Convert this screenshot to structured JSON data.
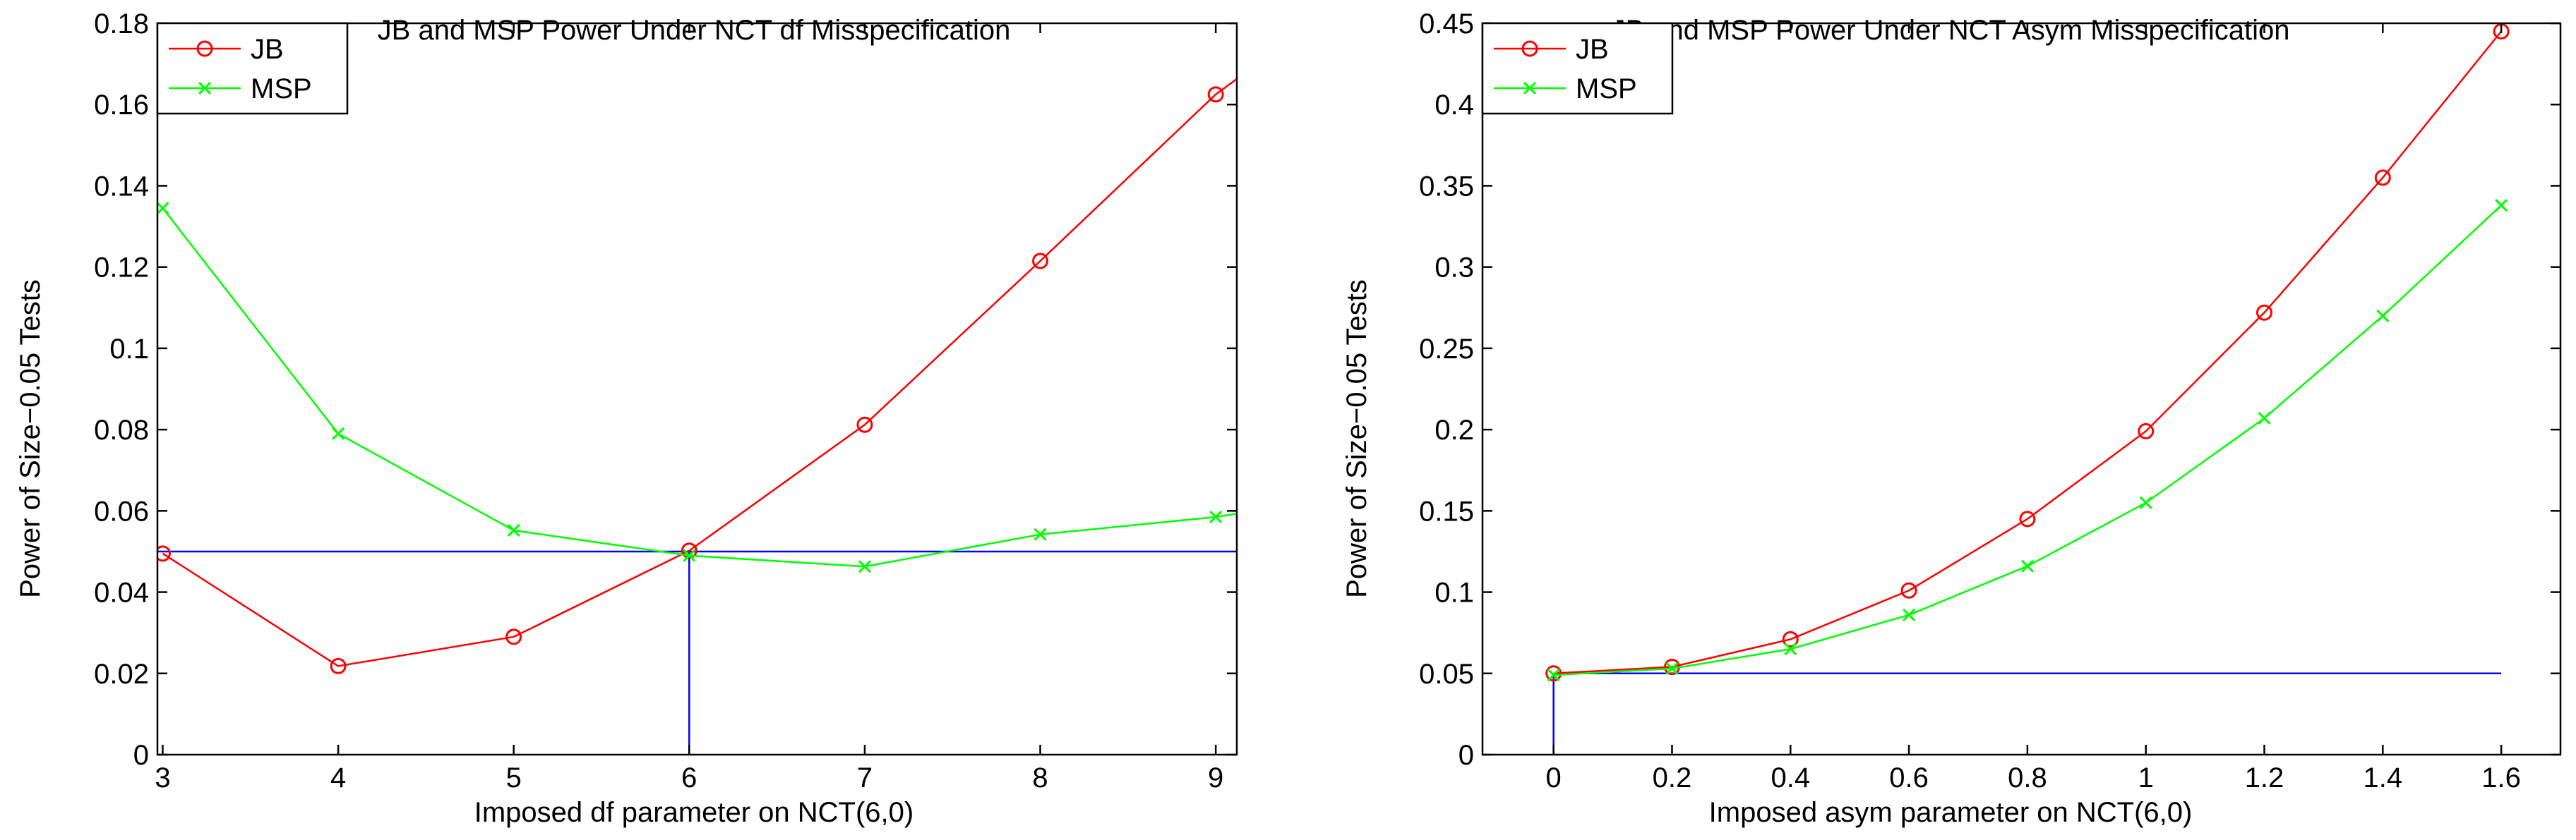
{
  "chart_data": [
    {
      "type": "line",
      "title": "JB and MSP Power Under NCT df Misspecification",
      "xlabel": "Imposed df parameter on NCT(6,0)",
      "ylabel": "Power of Size−0.05 Tests",
      "xlim": [
        2.97,
        9.12
      ],
      "ylim": [
        0,
        0.18
      ],
      "xticks": [
        3,
        4,
        5,
        6,
        7,
        8,
        9
      ],
      "xtick_labels": [
        "3",
        "4",
        "5",
        "6",
        "7",
        "8",
        "9"
      ],
      "yticks": [
        0,
        0.02,
        0.04,
        0.06,
        0.08,
        0.1,
        0.12,
        0.14,
        0.16,
        0.18
      ],
      "ytick_labels": [
        "0",
        "0.02",
        "0.04",
        "0.06",
        "0.08",
        "0.1",
        "0.12",
        "0.14",
        "0.16",
        "0.18"
      ],
      "legend": "top-left",
      "series": [
        {
          "name": "JB",
          "color": "#ff0000",
          "marker": "circle",
          "x": [
            3,
            4,
            5,
            6,
            7,
            8,
            9
          ],
          "y": [
            0.0495,
            0.0218,
            0.029,
            0.0502,
            0.0812,
            0.1215,
            0.1625
          ],
          "line_extend": [
            9.12,
            0.1663
          ]
        },
        {
          "name": "MSP",
          "color": "#00ff00",
          "marker": "x",
          "x": [
            3,
            4,
            5,
            6,
            7,
            8,
            9
          ],
          "y": [
            0.1345,
            0.079,
            0.0552,
            0.049,
            0.0463,
            0.0542,
            0.0585
          ],
          "line_extend": [
            9.12,
            0.0593
          ]
        }
      ],
      "reference_lines": [
        {
          "color": "#0000ff",
          "x": [
            2.97,
            9.12
          ],
          "y": [
            0.05,
            0.05
          ]
        },
        {
          "color": "#0000ff",
          "x": [
            6,
            6
          ],
          "y": [
            0,
            0.05
          ]
        }
      ]
    },
    {
      "type": "line",
      "title": "JB and MSP Power Under NCT Asym Misspecification",
      "xlabel": "Imposed asym parameter on NCT(6,0)",
      "ylabel": "Power of Size−0.05 Tests",
      "xlim": [
        -0.12,
        1.7
      ],
      "ylim": [
        0,
        0.45
      ],
      "xticks": [
        0,
        0.2,
        0.4,
        0.6,
        0.8,
        1,
        1.2,
        1.4,
        1.6
      ],
      "xtick_labels": [
        "0",
        "0.2",
        "0.4",
        "0.6",
        "0.8",
        "1",
        "1.2",
        "1.4",
        "1.6"
      ],
      "yticks": [
        0,
        0.05,
        0.1,
        0.15,
        0.2,
        0.25,
        0.3,
        0.35,
        0.4,
        0.45
      ],
      "ytick_labels": [
        "0",
        "0.05",
        "0.1",
        "0.15",
        "0.2",
        "0.25",
        "0.3",
        "0.35",
        "0.4",
        "0.45"
      ],
      "legend": "top-left",
      "series": [
        {
          "name": "JB",
          "color": "#ff0000",
          "marker": "circle",
          "x": [
            0,
            0.2,
            0.4,
            0.6,
            0.8,
            1,
            1.2,
            1.4,
            1.6
          ],
          "y": [
            0.05,
            0.054,
            0.071,
            0.101,
            0.145,
            0.199,
            0.272,
            0.355,
            0.445
          ]
        },
        {
          "name": "MSP",
          "color": "#00ff00",
          "marker": "x",
          "x": [
            0,
            0.2,
            0.4,
            0.6,
            0.8,
            1,
            1.2,
            1.4,
            1.6
          ],
          "y": [
            0.049,
            0.053,
            0.065,
            0.086,
            0.116,
            0.155,
            0.207,
            0.27,
            0.338
          ]
        }
      ],
      "reference_lines": [
        {
          "color": "#0000ff",
          "x": [
            0,
            1.6
          ],
          "y": [
            0.05,
            0.05
          ]
        },
        {
          "color": "#0000ff",
          "x": [
            0,
            0
          ],
          "y": [
            0,
            0.05
          ]
        }
      ]
    }
  ]
}
